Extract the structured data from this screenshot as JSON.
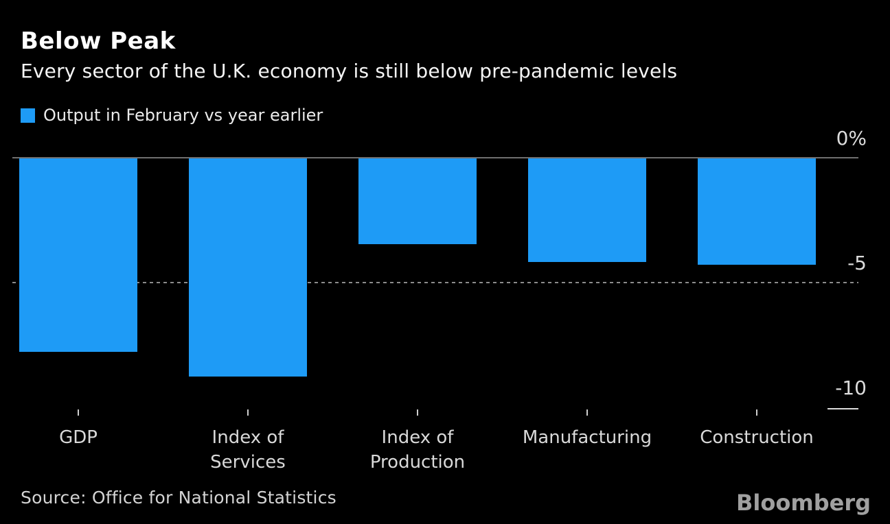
{
  "header": {
    "title": "Below Peak",
    "subtitle": "Every sector of the U.K. economy is still below pre-pandemic levels"
  },
  "legend": {
    "label": "Output in February vs year earlier",
    "swatch_color": "#1e9bf6"
  },
  "chart_data": {
    "type": "bar",
    "title": "Below Peak",
    "subtitle": "Every sector of the U.K. economy is still below pre-pandemic levels",
    "series_label": "Output in February vs year earlier",
    "categories": [
      "GDP",
      "Index of Services",
      "Index of Production",
      "Manufacturing",
      "Construction"
    ],
    "category_lines": [
      [
        "GDP"
      ],
      [
        "Index of",
        "Services"
      ],
      [
        "Index of",
        "Production"
      ],
      [
        "Manufacturing"
      ],
      [
        "Construction"
      ]
    ],
    "values": [
      -7.8,
      -8.8,
      -3.5,
      -4.2,
      -4.3
    ],
    "unit": "%",
    "ylim": [
      -10,
      0
    ],
    "y_ticks": [
      {
        "label": "0%",
        "value": 0
      },
      {
        "label": "-5",
        "value": -5
      },
      {
        "label": "-10",
        "value": -10
      }
    ],
    "grid": {
      "zero_line_solid": true,
      "dotted_gridline_at": -5,
      "bottom_tick_segment_at": -10
    },
    "legend_position": "top-left",
    "axis_labels_side": "right",
    "bar_color": "#1e9bf6"
  },
  "footer": {
    "source": "Source: Office for National Statistics",
    "brand": "Bloomberg"
  },
  "colors": {
    "background": "#000000",
    "bar": "#1e9bf6",
    "zero_line": "#6f6f6f",
    "dotted_line": "#8c8c8c",
    "tick_text": "#dcdcdc",
    "category_text": "#d9d9d9",
    "source_text": "#d4d4d4",
    "brand_text": "#a0a0a0",
    "title_text": "#ffffff"
  }
}
